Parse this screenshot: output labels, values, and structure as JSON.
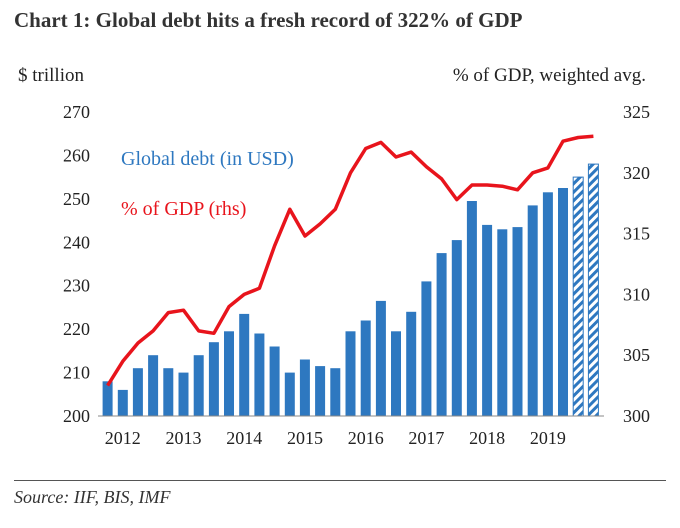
{
  "title": "Chart 1: Global debt hits a fresh record of 322% of GDP",
  "source": "Source: IIF, BIS, IMF",
  "chart_data": {
    "type": "bar+line",
    "left_axis_label": "$ trillion",
    "right_axis_label": "% of GDP, weighted avg.",
    "left_ylim": [
      200,
      270
    ],
    "left_ticks": [
      "200",
      "210",
      "220",
      "230",
      "240",
      "250",
      "260",
      "270"
    ],
    "right_ylim": [
      300,
      325
    ],
    "right_ticks": [
      "300",
      "305",
      "310",
      "315",
      "320",
      "325"
    ],
    "x_tick_labels": [
      "2012",
      "2013",
      "2014",
      "2015",
      "2016",
      "2017",
      "2018",
      "2019"
    ],
    "series": [
      {
        "name": "Global debt (in USD)",
        "type": "bar",
        "axis": "left",
        "color": "#2e78c0",
        "values": [
          208,
          206,
          211,
          214,
          211,
          210,
          214,
          217,
          219.5,
          223.5,
          219,
          216,
          210,
          213,
          211.5,
          211,
          219.5,
          222,
          226.5,
          219.5,
          224,
          231,
          237.5,
          240.5,
          249.5,
          244,
          243,
          243.5,
          248.5,
          251.5,
          252.5,
          255,
          258
        ],
        "estimated_last_n": 2
      },
      {
        "name": "% of GDP (rhs)",
        "type": "line",
        "axis": "right",
        "color": "#e8141c",
        "values": [
          302.5,
          304.5,
          306,
          307,
          308.5,
          308.7,
          307,
          306.8,
          309,
          310,
          310.5,
          314,
          317,
          314.8,
          315.8,
          317,
          320,
          322,
          322.5,
          321.3,
          321.7,
          320.5,
          319.5,
          317.8,
          319,
          319,
          318.9,
          318.6,
          320,
          320.4,
          322.6,
          322.9,
          323
        ]
      }
    ],
    "legend": "inside top-left",
    "grid": false
  }
}
